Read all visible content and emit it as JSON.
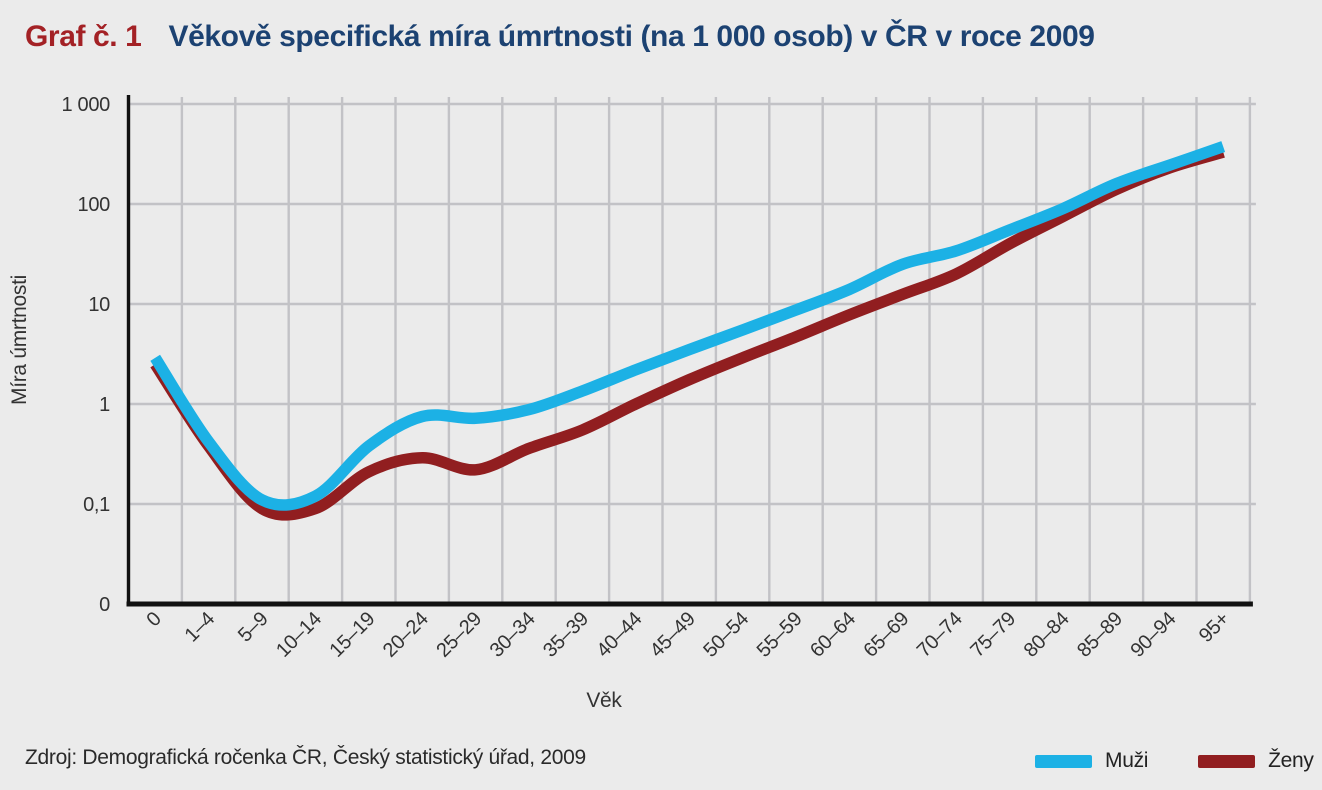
{
  "header": {
    "label": "Graf č. 1",
    "title": "Věkově specifická míra úmrtnosti (na 1 000 osob) v ČR v roce 2009"
  },
  "chart_data": {
    "type": "line",
    "title": "Věkově specifická míra úmrtnosti (na 1 000 osob) v ČR v roce 2009",
    "xlabel": "Věk",
    "ylabel": "Míra úmrtnosti",
    "y_scale": "log",
    "grid": true,
    "legend_position": "bottom-right",
    "y_ticks": [
      {
        "label": "1 000",
        "value": 1000
      },
      {
        "label": "100",
        "value": 100
      },
      {
        "label": "10",
        "value": 10
      },
      {
        "label": "1",
        "value": 1
      },
      {
        "label": "0,1",
        "value": 0.1
      },
      {
        "label": "0",
        "value": 0
      }
    ],
    "y_gridline_values": [
      1000,
      100,
      10,
      1,
      0.1
    ],
    "categories": [
      "0",
      "1–4",
      "5–9",
      "10–14",
      "15–19",
      "20–24",
      "25–29",
      "30–34",
      "35–39",
      "40–44",
      "45–49",
      "50–54",
      "55–59",
      "60–64",
      "65–69",
      "70–74",
      "75–79",
      "80–84",
      "85–89",
      "90–94",
      "95+"
    ],
    "series": [
      {
        "name": "Muži",
        "color": "#1cb1e5",
        "values": [
          2.9,
          0.42,
          0.11,
          0.12,
          0.38,
          0.75,
          0.72,
          0.88,
          1.35,
          2.2,
          3.5,
          5.5,
          8.7,
          14,
          25,
          34,
          55,
          90,
          160,
          245,
          375
        ]
      },
      {
        "name": "Ženy",
        "color": "#911e20",
        "values": [
          2.5,
          0.38,
          0.09,
          0.09,
          0.21,
          0.29,
          0.22,
          0.36,
          0.55,
          1.0,
          1.75,
          2.9,
          4.7,
          7.8,
          12.5,
          20,
          40,
          75,
          140,
          230,
          330
        ]
      }
    ]
  },
  "source": "Zdroj: Demografická ročenka ČR, Český statistický úřad, 2009",
  "colors": {
    "background": "#ebebeb",
    "grid": "#c2c2c6",
    "axis": "#111111",
    "header_label": "#a32125",
    "header_title": "#1c4272",
    "text": "#333333"
  }
}
